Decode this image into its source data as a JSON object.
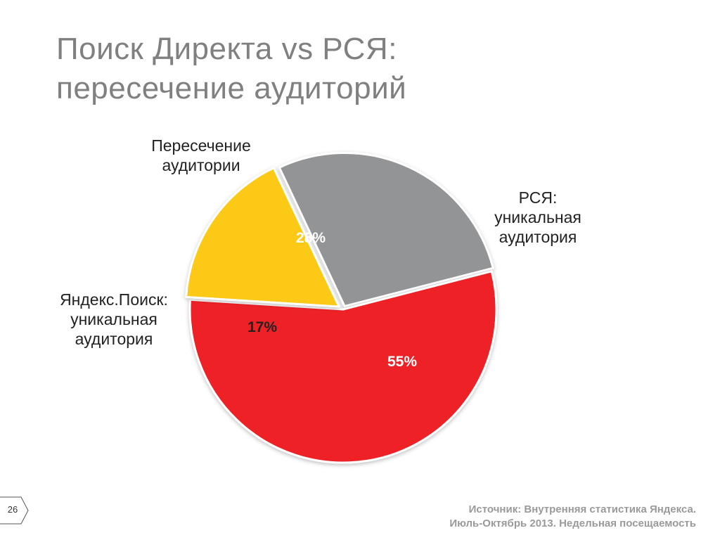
{
  "slide": {
    "title_line1": "Поиск Директа vs РСЯ:",
    "title_line2": "пересечение аудиторий",
    "page_number": "26",
    "source_line1": "Источник: Внутренняя статистика Яндекса.",
    "source_line2": "Июль-Октябрь 2013. Недельная посещаемость"
  },
  "chart_data": {
    "type": "pie",
    "title": "Поиск Директа vs РСЯ: пересечение аудиторий",
    "slices": [
      {
        "name_line1": "Пересечение",
        "name_line2": "аудитории",
        "name_line3": "",
        "value": 28,
        "label": "28%",
        "color": "#939496"
      },
      {
        "name_line1": "РСЯ:",
        "name_line2": "уникальная",
        "name_line3": "аудитория",
        "value": 55,
        "label": "55%",
        "color": "#ee2127"
      },
      {
        "name_line1": "Яндекс.Поиск:",
        "name_line2": "уникальная",
        "name_line3": "аудитория",
        "value": 17,
        "label": "17%",
        "color": "#fcc913"
      }
    ]
  }
}
